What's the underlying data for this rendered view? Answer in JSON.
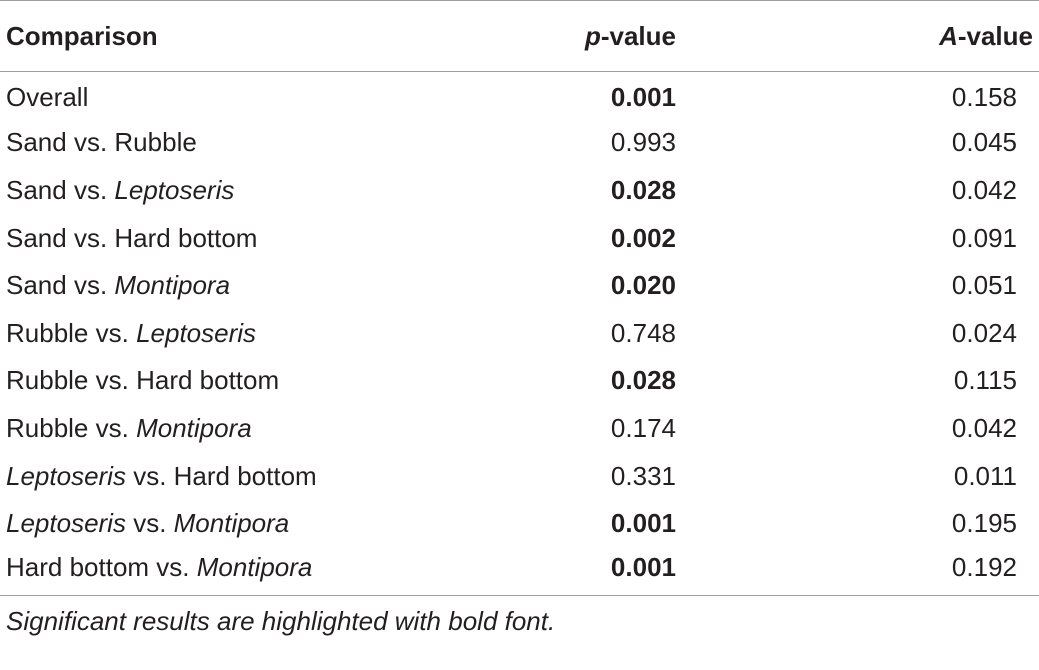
{
  "table": {
    "headers": {
      "comparison": "Comparison",
      "p_italic": "p",
      "p_rest": "-value",
      "a_italic": "A",
      "a_rest": "-value"
    },
    "rows": [
      {
        "a": "Overall",
        "a_italic": false,
        "mid": "",
        "b": "",
        "b_italic": false,
        "p": "0.001",
        "significant": true,
        "A": "0.158"
      },
      {
        "a": "Sand",
        "a_italic": false,
        "mid": " vs. ",
        "b": "Rubble",
        "b_italic": false,
        "p": "0.993",
        "significant": false,
        "A": "0.045"
      },
      {
        "a": "Sand",
        "a_italic": false,
        "mid": " vs. ",
        "b": "Leptoseris",
        "b_italic": true,
        "p": "0.028",
        "significant": true,
        "A": "0.042"
      },
      {
        "a": "Sand",
        "a_italic": false,
        "mid": " vs. ",
        "b": "Hard bottom",
        "b_italic": false,
        "p": "0.002",
        "significant": true,
        "A": "0.091"
      },
      {
        "a": "Sand",
        "a_italic": false,
        "mid": " vs. ",
        "b": "Montipora",
        "b_italic": true,
        "p": "0.020",
        "significant": true,
        "A": "0.051"
      },
      {
        "a": "Rubble",
        "a_italic": false,
        "mid": " vs. ",
        "b": "Leptoseris",
        "b_italic": true,
        "p": "0.748",
        "significant": false,
        "A": "0.024"
      },
      {
        "a": "Rubble",
        "a_italic": false,
        "mid": " vs. ",
        "b": "Hard bottom",
        "b_italic": false,
        "p": "0.028",
        "significant": true,
        "A": "0.115"
      },
      {
        "a": "Rubble",
        "a_italic": false,
        "mid": " vs. ",
        "b": "Montipora",
        "b_italic": true,
        "p": "0.174",
        "significant": false,
        "A": "0.042"
      },
      {
        "a": "Leptoseris",
        "a_italic": true,
        "mid": " vs. ",
        "b": "Hard bottom",
        "b_italic": false,
        "p": "0.331",
        "significant": false,
        "A": "0.011"
      },
      {
        "a": "Leptoseris",
        "a_italic": true,
        "mid": " vs. ",
        "b": "Montipora",
        "b_italic": true,
        "p": "0.001",
        "significant": true,
        "A": "0.195"
      },
      {
        "a": "Hard bottom",
        "a_italic": false,
        "mid": " vs. ",
        "b": "Montipora",
        "b_italic": true,
        "p": "0.001",
        "significant": true,
        "A": "0.192"
      }
    ],
    "footnote": "Significant results are highlighted with bold font."
  }
}
